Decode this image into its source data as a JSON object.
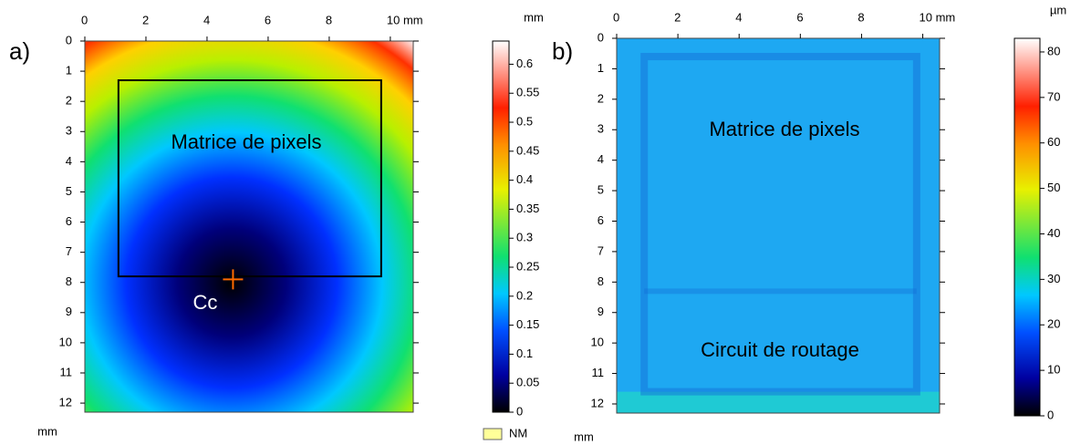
{
  "chart_data": [
    {
      "type": "heatmap",
      "panel_label": "a)",
      "x_unit": "mm",
      "colorbar_unit": "mm",
      "yaxis_reversed": true,
      "xlim": [
        0,
        10.75
      ],
      "ylim": [
        0,
        12.3
      ],
      "xticks": [
        0,
        2,
        4,
        6,
        8,
        {
          "value": 10,
          "label": "10 mm"
        }
      ],
      "yticks": [
        0,
        1,
        2,
        3,
        4,
        5,
        6,
        7,
        8,
        9,
        10,
        11,
        12
      ],
      "colorbar_lim": [
        0,
        0.64
      ],
      "colorbar_ticks": [
        0,
        0.05,
        0.1,
        0.15,
        0.2,
        0.25,
        0.3,
        0.35,
        0.4,
        0.45,
        0.5,
        0.55,
        0.6
      ],
      "annotations": [
        "Matrice de pixels",
        "Cc"
      ],
      "missing_label": "NM"
    },
    {
      "type": "heatmap",
      "panel_label": "b)",
      "x_unit": "mm",
      "colorbar_unit": "µm",
      "yaxis_reversed": true,
      "xlim": [
        0,
        10.55
      ],
      "ylim": [
        0,
        12.3
      ],
      "xticks": [
        0,
        2,
        4,
        6,
        8,
        {
          "value": 10,
          "label": "10 mm"
        }
      ],
      "yticks": [
        0,
        1,
        2,
        3,
        4,
        5,
        6,
        7,
        8,
        9,
        10,
        11,
        12
      ],
      "colorbar_lim": [
        0,
        83
      ],
      "colorbar_ticks": [
        0,
        10,
        20,
        30,
        40,
        50,
        60,
        70,
        80
      ],
      "annotations": [
        "Matrice de pixels",
        "Circuit de routage"
      ]
    }
  ]
}
